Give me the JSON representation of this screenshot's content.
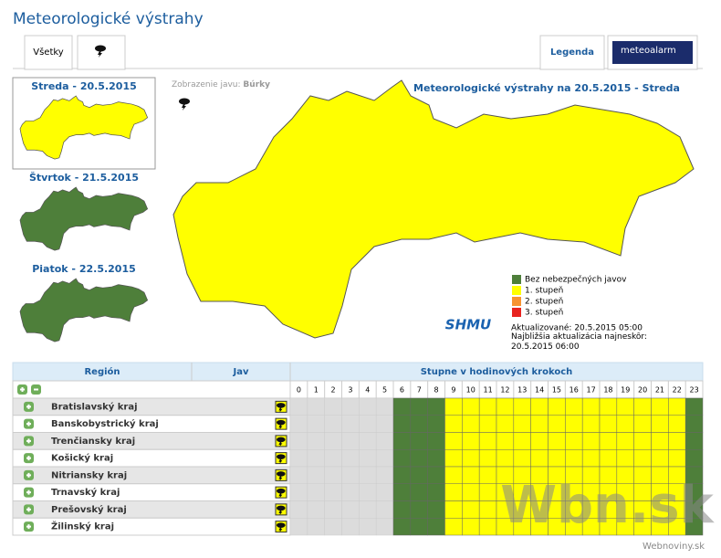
{
  "header": {
    "title": "Meteorologické výstrahy"
  },
  "tabs": {
    "all": "Všetky",
    "legend": "Legenda",
    "logo": "meteoalarm"
  },
  "days": [
    {
      "label": "Streda - 20.5.2015",
      "level": 1
    },
    {
      "label": "Štvrtok - 21.5.2015",
      "level": 0
    },
    {
      "label": "Piatok - 22.5.2015",
      "level": 0
    }
  ],
  "map": {
    "display_label": "Zobrazenie javu:",
    "display_value": "Búrky",
    "title": "Meteorologické výstrahy na 20.5.2015 - Streda",
    "level": 1
  },
  "legend": [
    {
      "label": "Bez nebezpečných javov",
      "color": "#4e7f3a"
    },
    {
      "label": "1. stupeň",
      "color": "#ffff00"
    },
    {
      "label": "2. stupeň",
      "color": "#f79330"
    },
    {
      "label": "3. stupeň",
      "color": "#e8231f"
    }
  ],
  "shmu": "SHMU",
  "updated": "Aktualizované: 20.5.2015 05:00",
  "next_update": "Najbližšia aktualizácia najneskôr: 20.5.2015 06:00",
  "table": {
    "headers": {
      "region": "Región",
      "jav": "Jav",
      "steps": "Stupne v hodinových krokoch"
    },
    "hours": [
      0,
      1,
      2,
      3,
      4,
      5,
      6,
      7,
      8,
      9,
      10,
      11,
      12,
      13,
      14,
      15,
      16,
      17,
      18,
      19,
      20,
      21,
      22,
      23
    ],
    "rows": [
      {
        "region": "Bratislavský kraj",
        "levels": [
          null,
          null,
          null,
          null,
          null,
          null,
          0,
          0,
          0,
          1,
          1,
          1,
          1,
          1,
          1,
          1,
          1,
          1,
          1,
          1,
          1,
          1,
          1,
          0
        ]
      },
      {
        "region": "Banskobystrický kraj",
        "levels": [
          null,
          null,
          null,
          null,
          null,
          null,
          0,
          0,
          0,
          1,
          1,
          1,
          1,
          1,
          1,
          1,
          1,
          1,
          1,
          1,
          1,
          1,
          1,
          0
        ]
      },
      {
        "region": "Trenčiansky kraj",
        "levels": [
          null,
          null,
          null,
          null,
          null,
          null,
          0,
          0,
          0,
          1,
          1,
          1,
          1,
          1,
          1,
          1,
          1,
          1,
          1,
          1,
          1,
          1,
          1,
          0
        ]
      },
      {
        "region": "Košický kraj",
        "levels": [
          null,
          null,
          null,
          null,
          null,
          null,
          0,
          0,
          0,
          1,
          1,
          1,
          1,
          1,
          1,
          1,
          1,
          1,
          1,
          1,
          1,
          1,
          1,
          0
        ]
      },
      {
        "region": "Nitriansky kraj",
        "levels": [
          null,
          null,
          null,
          null,
          null,
          null,
          0,
          0,
          0,
          1,
          1,
          1,
          1,
          1,
          1,
          1,
          1,
          1,
          1,
          1,
          1,
          1,
          1,
          0
        ]
      },
      {
        "region": "Trnavský kraj",
        "levels": [
          null,
          null,
          null,
          null,
          null,
          null,
          0,
          0,
          0,
          1,
          1,
          1,
          1,
          1,
          1,
          1,
          1,
          1,
          1,
          1,
          1,
          1,
          1,
          0
        ]
      },
      {
        "region": "Prešovský kraj",
        "levels": [
          null,
          null,
          null,
          null,
          null,
          null,
          0,
          0,
          0,
          1,
          1,
          1,
          1,
          1,
          1,
          1,
          1,
          1,
          1,
          1,
          1,
          1,
          1,
          0
        ]
      },
      {
        "region": "Žilinský kraj",
        "levels": [
          null,
          null,
          null,
          null,
          null,
          null,
          0,
          0,
          0,
          1,
          1,
          1,
          1,
          1,
          1,
          1,
          1,
          1,
          1,
          1,
          1,
          1,
          1,
          0
        ]
      }
    ]
  },
  "watermark": {
    "brand": "Wbn.sk",
    "site": "Webnoviny.sk"
  }
}
